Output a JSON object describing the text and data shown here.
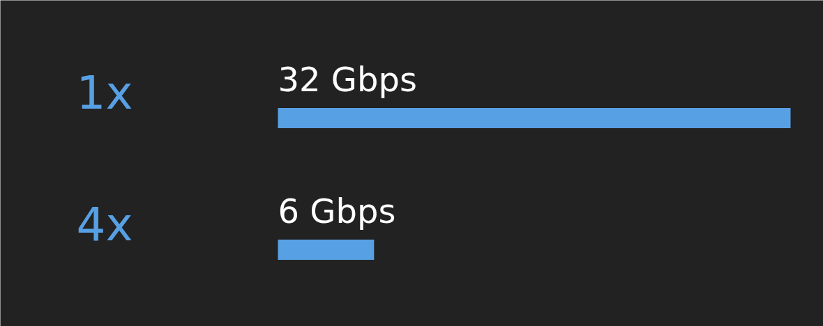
{
  "chart_data": {
    "type": "bar",
    "orientation": "horizontal",
    "categories": [
      "1x",
      "4x"
    ],
    "values": [
      32,
      6
    ],
    "value_labels": [
      "32 Gbps",
      "6 Gbps"
    ],
    "colors": [
      "#58a0e4",
      "#58a0e4"
    ]
  }
}
